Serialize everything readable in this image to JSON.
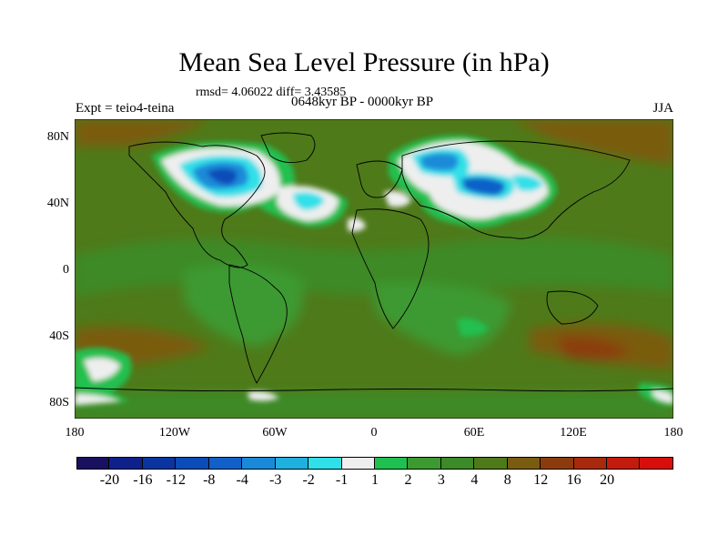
{
  "title": "Mean Sea Level Pressure (in hPa)",
  "stats": "rmsd= 4.06022 diff= 3.43585",
  "left_label": "Expt = teio4-teina",
  "center_label": "0648kyr BP - 0000kyr BP",
  "right_label": "JJA",
  "lat_ticks": [
    "80N",
    "40N",
    "0",
    "40S",
    "80S"
  ],
  "lon_ticks": [
    "180",
    "120W",
    "60W",
    "0",
    "60E",
    "120E",
    "180"
  ],
  "colorbar": {
    "labels": [
      "-20",
      "-16",
      "-12",
      "-8",
      "-4",
      "-3",
      "-2",
      "-1",
      "1",
      "2",
      "3",
      "4",
      "8",
      "12",
      "16",
      "20"
    ],
    "colors": [
      "#1a1060",
      "#10208a",
      "#0a35a0",
      "#0a4cb8",
      "#1060c8",
      "#1a8ad8",
      "#20b0e0",
      "#30e0e8",
      "#eeeeee",
      "#20c050",
      "#3c9a30",
      "#3c8a28",
      "#4e7a1a",
      "#7a5c10",
      "#8c3c0c",
      "#a82a0c",
      "#c41c0c",
      "#d80e0a"
    ]
  }
}
